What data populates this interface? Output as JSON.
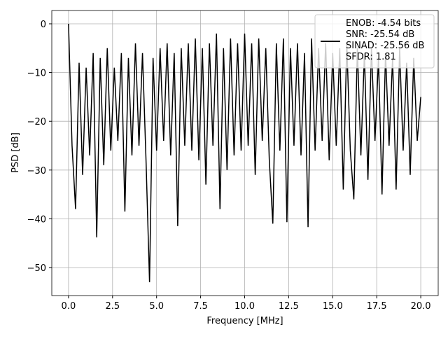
{
  "chart_data": {
    "type": "line",
    "xlabel": "Frequency [MHz]",
    "ylabel": "PSD [dB]",
    "x": [
      0,
      0.2,
      0.4,
      0.6,
      0.8,
      1.0,
      1.2,
      1.4,
      1.6,
      1.8,
      2.0,
      2.2,
      2.4,
      2.6,
      2.8,
      3.0,
      3.2,
      3.4,
      3.6,
      3.8,
      4.0,
      4.2,
      4.4,
      4.6,
      4.8,
      5.0,
      5.2,
      5.4,
      5.6,
      5.8,
      6.0,
      6.2,
      6.4,
      6.6,
      6.8,
      7.0,
      7.2,
      7.4,
      7.6,
      7.8,
      8.0,
      8.2,
      8.4,
      8.6,
      8.8,
      9.0,
      9.2,
      9.4,
      9.6,
      9.8,
      10.0,
      10.2,
      10.4,
      10.6,
      10.8,
      11.0,
      11.2,
      11.4,
      11.6,
      11.8,
      12.0,
      12.2,
      12.4,
      12.6,
      12.8,
      13.0,
      13.2,
      13.4,
      13.6,
      13.8,
      14.0,
      14.2,
      14.4,
      14.6,
      14.8,
      15.0,
      15.2,
      15.4,
      15.6,
      15.8,
      16.0,
      16.2,
      16.4,
      16.6,
      16.8,
      17.0,
      17.2,
      17.4,
      17.6,
      17.8,
      18.0,
      18.2,
      18.4,
      18.6,
      18.8,
      19.0,
      19.2,
      19.4,
      19.6,
      19.8,
      20.0
    ],
    "series": [
      {
        "name": "ENOB: -4.54 bits\nSNR: -25.54 dB\nSINAD: -25.56 dB\nSFDR: 1.81",
        "color": "#000000",
        "values": [
          0,
          -25,
          -38,
          -8,
          -31,
          -9,
          -27,
          -6,
          -43.8,
          -7,
          -29,
          -5,
          -26,
          -9,
          -24,
          -6,
          -38.5,
          -7,
          -27,
          -4,
          -25,
          -6,
          -28,
          -53,
          -7,
          -26,
          -5,
          -24,
          -4,
          -27,
          -6,
          -41.5,
          -5,
          -25,
          -4,
          -26,
          -3,
          -28,
          -5,
          -33,
          -4,
          -25,
          -2,
          -38,
          -5,
          -30,
          -3,
          -27,
          -4,
          -26,
          -2,
          -25,
          -4,
          -31,
          -3,
          -24,
          -5,
          -28,
          -41,
          -4,
          -26,
          -3,
          -40.7,
          -5,
          -25,
          -4,
          -27,
          -6,
          -41.7,
          -3,
          -26,
          -5,
          -24,
          -4,
          -28,
          -6,
          -25,
          -5,
          -34,
          -4,
          -26,
          -36,
          -5,
          -27,
          -6,
          -32,
          -5,
          -24,
          -7,
          -35,
          -6,
          -25,
          -7,
          -34,
          -5,
          -26,
          -8,
          -31,
          -7,
          -24,
          -15
        ]
      }
    ],
    "xlim": [
      -0.95,
      20.99
    ],
    "ylim": [
      -55.75,
      2.73
    ],
    "xticks": [
      {
        "value": 0,
        "label": "0.0"
      },
      {
        "value": 2.5,
        "label": "2.5"
      },
      {
        "value": 5,
        "label": "5.0"
      },
      {
        "value": 7.5,
        "label": "7.5"
      },
      {
        "value": 10,
        "label": "10.0"
      },
      {
        "value": 12.5,
        "label": "12.5"
      },
      {
        "value": 15,
        "label": "15.0"
      },
      {
        "value": 17.5,
        "label": "17.5"
      },
      {
        "value": 20,
        "label": "20.0"
      }
    ],
    "yticks": [
      0,
      {
        "value": -10,
        "label": "−10"
      },
      {
        "value": -20,
        "label": "−20"
      },
      {
        "value": -30,
        "label": "−30"
      },
      {
        "value": -40,
        "label": "−40"
      },
      {
        "value": -50,
        "label": "−50"
      }
    ],
    "grid": true,
    "legend": "upper right"
  }
}
